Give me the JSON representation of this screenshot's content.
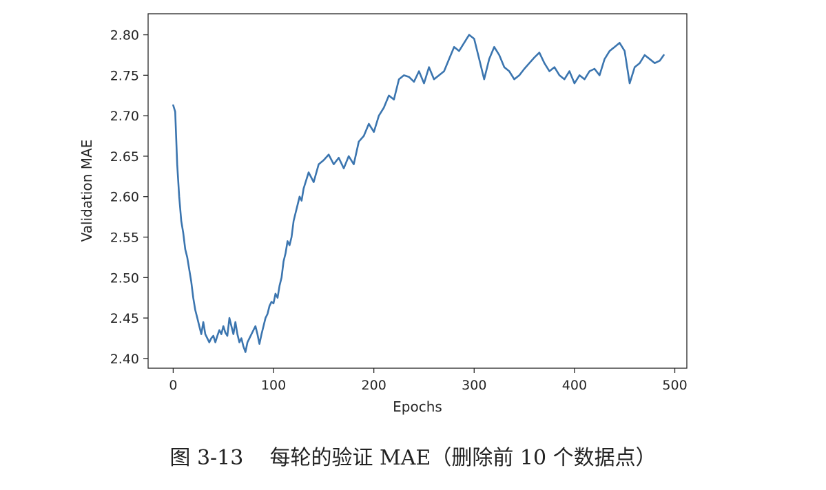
{
  "chart_data": {
    "type": "line",
    "title": "",
    "xlabel": "Epochs",
    "ylabel": "Validation MAE",
    "xlim": [
      -25,
      512
    ],
    "ylim": [
      2.388,
      2.826
    ],
    "xticks": [
      0,
      100,
      200,
      300,
      400,
      500
    ],
    "xtick_labels": [
      "0",
      "100",
      "200",
      "300",
      "400",
      "500"
    ],
    "yticks": [
      2.4,
      2.45,
      2.5,
      2.55,
      2.6,
      2.65,
      2.7,
      2.75,
      2.8
    ],
    "ytick_labels": [
      "2.40",
      "2.45",
      "2.50",
      "2.55",
      "2.60",
      "2.65",
      "2.70",
      "2.75",
      "2.80"
    ],
    "grid": false,
    "series": [
      {
        "color": "#3b75af",
        "x": [
          0,
          2,
          4,
          6,
          8,
          10,
          12,
          14,
          16,
          18,
          20,
          22,
          24,
          26,
          28,
          30,
          32,
          34,
          36,
          38,
          40,
          42,
          44,
          46,
          48,
          50,
          52,
          54,
          56,
          58,
          60,
          62,
          64,
          66,
          68,
          70,
          72,
          74,
          76,
          78,
          80,
          82,
          84,
          86,
          88,
          90,
          92,
          94,
          96,
          98,
          100,
          102,
          104,
          106,
          108,
          110,
          112,
          114,
          116,
          118,
          120,
          122,
          124,
          126,
          128,
          130,
          135,
          140,
          145,
          150,
          155,
          160,
          165,
          170,
          175,
          180,
          185,
          190,
          195,
          200,
          205,
          210,
          215,
          220,
          225,
          230,
          235,
          240,
          245,
          250,
          255,
          260,
          265,
          270,
          275,
          280,
          285,
          290,
          295,
          300,
          305,
          310,
          315,
          320,
          325,
          330,
          335,
          340,
          345,
          350,
          355,
          360,
          365,
          370,
          375,
          380,
          385,
          390,
          395,
          400,
          405,
          410,
          415,
          420,
          425,
          430,
          435,
          440,
          445,
          450,
          455,
          460,
          465,
          470,
          475,
          480,
          485,
          489
        ],
        "y": [
          2.713,
          2.705,
          2.64,
          2.6,
          2.57,
          2.555,
          2.535,
          2.525,
          2.51,
          2.495,
          2.475,
          2.46,
          2.45,
          2.44,
          2.43,
          2.445,
          2.43,
          2.425,
          2.42,
          2.425,
          2.428,
          2.42,
          2.428,
          2.435,
          2.43,
          2.44,
          2.432,
          2.428,
          2.45,
          2.44,
          2.43,
          2.445,
          2.43,
          2.42,
          2.425,
          2.415,
          2.408,
          2.42,
          2.425,
          2.43,
          2.435,
          2.44,
          2.43,
          2.418,
          2.43,
          2.44,
          2.45,
          2.455,
          2.465,
          2.47,
          2.468,
          2.48,
          2.475,
          2.49,
          2.5,
          2.52,
          2.53,
          2.545,
          2.54,
          2.55,
          2.57,
          2.58,
          2.59,
          2.6,
          2.595,
          2.61,
          2.63,
          2.618,
          2.64,
          2.645,
          2.652,
          2.64,
          2.648,
          2.635,
          2.65,
          2.64,
          2.668,
          2.675,
          2.69,
          2.68,
          2.7,
          2.71,
          2.725,
          2.72,
          2.745,
          2.75,
          2.748,
          2.742,
          2.755,
          2.74,
          2.76,
          2.745,
          2.75,
          2.755,
          2.77,
          2.785,
          2.78,
          2.79,
          2.8,
          2.795,
          2.77,
          2.745,
          2.77,
          2.785,
          2.775,
          2.76,
          2.755,
          2.745,
          2.75,
          2.758,
          2.765,
          2.772,
          2.778,
          2.765,
          2.755,
          2.76,
          2.75,
          2.745,
          2.755,
          2.74,
          2.75,
          2.745,
          2.755,
          2.758,
          2.75,
          2.77,
          2.78,
          2.785,
          2.79,
          2.78,
          2.74,
          2.76,
          2.765,
          2.775,
          2.77,
          2.765,
          2.768,
          2.775
        ]
      }
    ]
  },
  "caption": {
    "figure_number": "图 3-13",
    "text": "每轮的验证 MAE（删除前 10 个数据点）"
  }
}
